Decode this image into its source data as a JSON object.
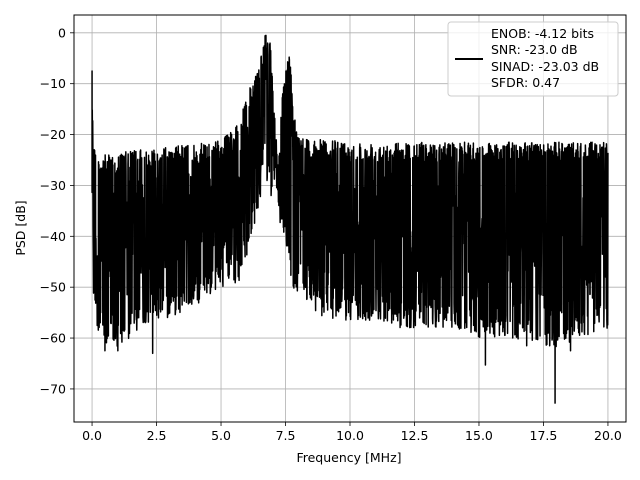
{
  "chart_data": {
    "type": "line",
    "xlabel": "Frequency [MHz]",
    "ylabel": "PSD [dB]",
    "xlim": [
      -0.7,
      20.7
    ],
    "ylim": [
      -76.5,
      3.5
    ],
    "x_ticks": [
      0.0,
      2.5,
      5.0,
      7.5,
      10.0,
      12.5,
      15.0,
      17.5,
      20.0
    ],
    "x_tick_labels": [
      "0.0",
      "2.5",
      "5.0",
      "7.5",
      "10.0",
      "12.5",
      "15.0",
      "17.5",
      "20.0"
    ],
    "y_ticks": [
      0,
      -10,
      -20,
      -30,
      -40,
      -50,
      -60,
      -70
    ],
    "y_tick_labels": [
      "0",
      "−10",
      "−20",
      "−30",
      "−40",
      "−50",
      "−60",
      "−70"
    ],
    "grid": true,
    "legend_position": "upper-right",
    "series": [
      {
        "name": "ENOB: -4.12 bits\nSNR: -23.0 dB\nSINAD: -23.03 dB\nSFDR: 0.47",
        "color": "#000000",
        "legend_lines": [
          "ENOB: -4.12 bits",
          "SNR: -23.0 dB",
          "SINAD: -23.03 dB",
          "SFDR: 0.47"
        ],
        "envelope": {
          "x": [
            0.0,
            0.05,
            0.2,
            0.5,
            1.0,
            1.5,
            2.0,
            2.5,
            3.0,
            3.5,
            4.0,
            4.5,
            5.0,
            5.5,
            5.8,
            6.0,
            6.2,
            6.4,
            6.6,
            6.7,
            6.8,
            6.9,
            7.0,
            7.1,
            7.2,
            7.3,
            7.4,
            7.5,
            7.6,
            7.7,
            7.8,
            8.0,
            8.5,
            9.0,
            10.0,
            11.0,
            12.0,
            13.0,
            14.0,
            15.0,
            16.0,
            17.0,
            18.0,
            19.0,
            20.0
          ],
          "upper": [
            -7.5,
            -20,
            -25,
            -24,
            -24,
            -23,
            -23,
            -22.5,
            -22.5,
            -22,
            -22,
            -21.5,
            -21,
            -19,
            -15,
            -12,
            -10,
            -8,
            -3,
            0,
            -1,
            -2,
            -8,
            -18,
            -25,
            -18,
            -10,
            -8,
            -3,
            -5,
            -15,
            -20,
            -21,
            -21,
            -21.5,
            -21.5,
            -21.5,
            -21.5,
            -21.5,
            -21.5,
            -21.5,
            -21.5,
            -21.5,
            -21.5,
            -21.5
          ],
          "lower": [
            -45,
            -52,
            -58,
            -62,
            -62,
            -60,
            -57,
            -57,
            -56,
            -55,
            -54,
            -52,
            -50,
            -50,
            -48,
            -44,
            -40,
            -36,
            -30,
            -28,
            -30,
            -32,
            -32,
            -30,
            -32,
            -38,
            -40,
            -42,
            -45,
            -48,
            -50,
            -52,
            -54,
            -56,
            -57,
            -57,
            -58,
            -58,
            -58,
            -60,
            -60,
            -61,
            -62,
            -60,
            -58
          ]
        },
        "dips": [
          {
            "x": 0.5,
            "y": -62.5
          },
          {
            "x": 1.0,
            "y": -62.5
          },
          {
            "x": 2.35,
            "y": -63.0
          },
          {
            "x": 15.25,
            "y": -65.3
          },
          {
            "x": 16.85,
            "y": -61.5
          },
          {
            "x": 17.95,
            "y": -72.8
          },
          {
            "x": 18.55,
            "y": -62.5
          }
        ]
      }
    ]
  }
}
